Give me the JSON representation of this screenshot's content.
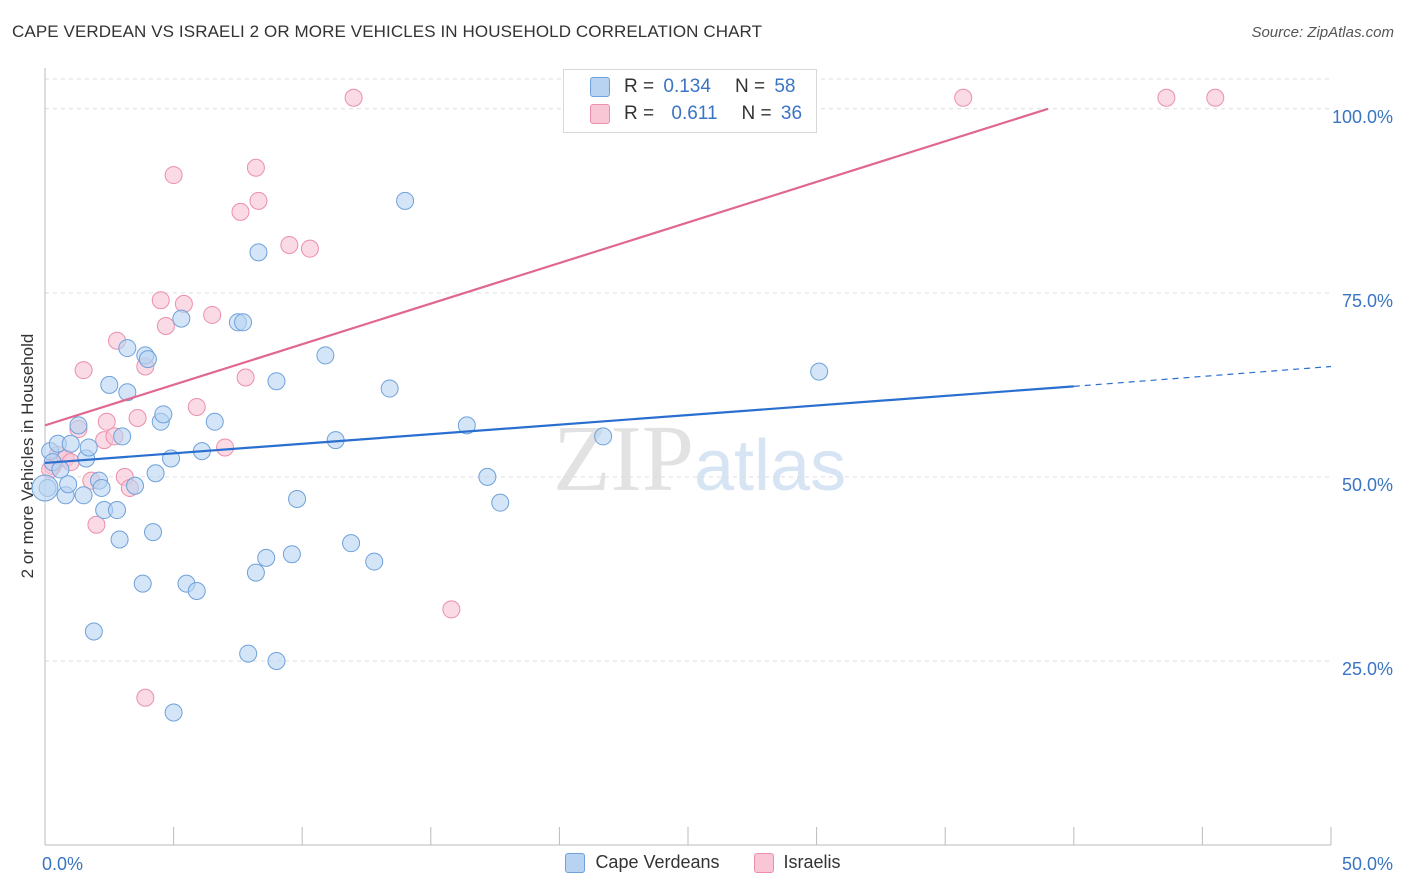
{
  "header": {
    "title": "CAPE VERDEAN VS ISRAELI 2 OR MORE VEHICLES IN HOUSEHOLD CORRELATION CHART",
    "source": "Source: ZipAtlas.com"
  },
  "legend_top": [
    {
      "r_label": "R =",
      "r_value": "0.134",
      "n_label": "N =",
      "n_value": "58"
    },
    {
      "r_label": "R =",
      "r_value": "0.611",
      "n_label": "N =",
      "n_value": "36"
    }
  ],
  "legend_bottom": [
    "Cape Verdeans",
    "Israelis"
  ],
  "watermark": {
    "zip": "ZIP",
    "atlas": "atlas"
  },
  "colors": {
    "blue_fill": "#b8d3f2",
    "blue_stroke": "#6fa1da",
    "blue_line": "#2a6fcf",
    "pink_fill": "#f8c6d5",
    "pink_stroke": "#ec8fab",
    "pink_line": "#e06890",
    "tick_label": "#3a74c4",
    "grid": "#dddddd"
  },
  "chart_data": {
    "type": "scatter",
    "title": "CAPE VERDEAN VS ISRAELI 2 OR MORE VEHICLES IN HOUSEHOLD CORRELATION CHART",
    "xlabel": "",
    "ylabel": "2 or more Vehicles in Household",
    "xlim": [
      0,
      50
    ],
    "ylim": [
      0,
      105
    ],
    "x_tick_labels": [
      "0.0%",
      "50.0%"
    ],
    "y_ticks": [
      25,
      50,
      75,
      100
    ],
    "y_tick_labels": [
      "25.0%",
      "50.0%",
      "75.0%",
      "100.0%"
    ],
    "grid": true,
    "legend_placement": "top-center",
    "series": [
      {
        "name": "Cape Verdeans",
        "r": 0.134,
        "n": 58,
        "trend": {
          "x": [
            0,
            40
          ],
          "y": [
            51.9,
            62.3
          ],
          "dashed_to_x": 50,
          "dashed_to_y": 65.0
        },
        "points": [
          [
            0.1,
            48.5
          ],
          [
            0.2,
            53.5
          ],
          [
            0.3,
            52.0
          ],
          [
            0.5,
            54.5
          ],
          [
            0.6,
            51.0
          ],
          [
            0.8,
            47.5
          ],
          [
            0.9,
            49.0
          ],
          [
            1.0,
            54.5
          ],
          [
            1.3,
            57.0
          ],
          [
            1.5,
            47.5
          ],
          [
            1.6,
            52.5
          ],
          [
            1.7,
            54.0
          ],
          [
            1.9,
            29.0
          ],
          [
            2.1,
            49.5
          ],
          [
            2.2,
            48.5
          ],
          [
            2.3,
            45.5
          ],
          [
            2.5,
            62.5
          ],
          [
            2.8,
            45.5
          ],
          [
            2.9,
            41.5
          ],
          [
            3.0,
            55.5
          ],
          [
            3.2,
            67.5
          ],
          [
            3.2,
            61.5
          ],
          [
            3.5,
            48.8
          ],
          [
            3.8,
            35.5
          ],
          [
            3.9,
            66.5
          ],
          [
            4.0,
            66.0
          ],
          [
            4.2,
            42.5
          ],
          [
            4.3,
            50.5
          ],
          [
            4.5,
            57.5
          ],
          [
            4.6,
            58.5
          ],
          [
            4.9,
            52.5
          ],
          [
            5.0,
            18.0
          ],
          [
            5.3,
            71.5
          ],
          [
            5.5,
            35.5
          ],
          [
            5.9,
            34.5
          ],
          [
            6.1,
            53.5
          ],
          [
            6.6,
            57.5
          ],
          [
            7.5,
            71.0
          ],
          [
            7.7,
            71.0
          ],
          [
            7.9,
            26.0
          ],
          [
            8.2,
            37.0
          ],
          [
            8.3,
            80.5
          ],
          [
            8.6,
            39.0
          ],
          [
            9.0,
            25.0
          ],
          [
            9.0,
            63.0
          ],
          [
            9.6,
            39.5
          ],
          [
            9.8,
            47.0
          ],
          [
            10.9,
            66.5
          ],
          [
            11.3,
            55.0
          ],
          [
            11.9,
            41.0
          ],
          [
            12.8,
            38.5
          ],
          [
            13.4,
            62.0
          ],
          [
            14.0,
            87.5
          ],
          [
            16.4,
            57.0
          ],
          [
            17.2,
            50.0
          ],
          [
            17.7,
            46.5
          ],
          [
            21.7,
            55.5
          ],
          [
            30.1,
            64.3
          ]
        ]
      },
      {
        "name": "Israelis",
        "r": 0.611,
        "n": 36,
        "trend": {
          "x": [
            0,
            39
          ],
          "y": [
            57.0,
            100.0
          ]
        },
        "points": [
          [
            0.3,
            51.5
          ],
          [
            0.5,
            53.0
          ],
          [
            0.8,
            52.5
          ],
          [
            1.0,
            52.0
          ],
          [
            1.3,
            56.5
          ],
          [
            1.5,
            64.5
          ],
          [
            1.8,
            49.5
          ],
          [
            2.0,
            43.5
          ],
          [
            2.3,
            55.0
          ],
          [
            2.4,
            57.5
          ],
          [
            2.7,
            55.5
          ],
          [
            2.8,
            68.5
          ],
          [
            3.1,
            50.0
          ],
          [
            3.3,
            48.5
          ],
          [
            3.6,
            58.0
          ],
          [
            3.9,
            20.0
          ],
          [
            3.9,
            65.0
          ],
          [
            4.5,
            74.0
          ],
          [
            4.7,
            70.5
          ],
          [
            5.0,
            91.0
          ],
          [
            5.4,
            73.5
          ],
          [
            5.9,
            59.5
          ],
          [
            6.5,
            72.0
          ],
          [
            7.0,
            54.0
          ],
          [
            7.6,
            86.0
          ],
          [
            7.8,
            63.5
          ],
          [
            8.2,
            92.0
          ],
          [
            8.3,
            87.5
          ],
          [
            9.5,
            81.5
          ],
          [
            10.3,
            81.0
          ],
          [
            12.0,
            101.5
          ],
          [
            15.8,
            32.0
          ],
          [
            35.7,
            101.5
          ],
          [
            43.6,
            101.5
          ],
          [
            45.5,
            101.5
          ],
          [
            0.2,
            51.0
          ]
        ]
      }
    ]
  }
}
